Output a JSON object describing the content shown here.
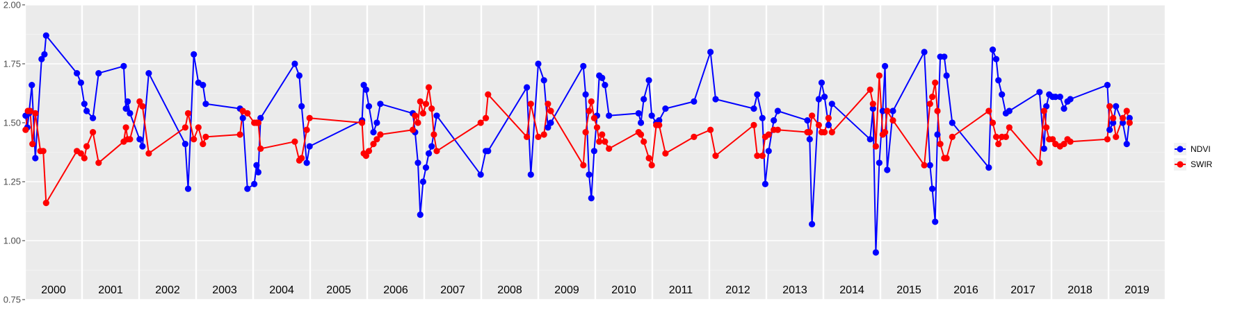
{
  "chart_data": {
    "type": "line",
    "title": "",
    "xlabel": "",
    "ylabel": "",
    "xlim": [
      2000,
      2020
    ],
    "ylim": [
      0.75,
      2.0
    ],
    "y_ticks": [
      "0.75",
      "1.00",
      "1.25",
      "1.50",
      "1.75",
      "2.00"
    ],
    "y_tick_values": [
      0.75,
      1.0,
      1.25,
      1.5,
      1.75,
      2.0
    ],
    "x_panel_labels": [
      "2000",
      "2001",
      "2002",
      "2003",
      "2004",
      "2005",
      "2006",
      "2007",
      "2008",
      "2009",
      "2010",
      "2011",
      "2012",
      "2013",
      "2014",
      "2015",
      "2016",
      "2017",
      "2018",
      "2019"
    ],
    "grid": true,
    "background": "#ebebeb",
    "legend_position": "right",
    "series": [
      {
        "name": "NDVI",
        "color": "#0000ff",
        "points": [
          [
            2000.01,
            1.53
          ],
          [
            2000.04,
            1.48
          ],
          [
            2000.07,
            1.54
          ],
          [
            2000.12,
            1.66
          ],
          [
            2000.18,
            1.35
          ],
          [
            2000.29,
            1.77
          ],
          [
            2000.34,
            1.79
          ],
          [
            2000.37,
            1.87
          ],
          [
            2000.91,
            1.71
          ],
          [
            2000.98,
            1.67
          ],
          [
            2001.04,
            1.58
          ],
          [
            2001.08,
            1.55
          ],
          [
            2001.19,
            1.52
          ],
          [
            2001.29,
            1.71
          ],
          [
            2001.73,
            1.74
          ],
          [
            2001.77,
            1.56
          ],
          [
            2001.8,
            1.59
          ],
          [
            2001.84,
            1.54
          ],
          [
            2002.01,
            1.43
          ],
          [
            2002.06,
            1.4
          ],
          [
            2002.17,
            1.71
          ],
          [
            2002.81,
            1.41
          ],
          [
            2002.86,
            1.22
          ],
          [
            2002.96,
            1.79
          ],
          [
            2003.04,
            1.67
          ],
          [
            2003.12,
            1.66
          ],
          [
            2003.17,
            1.58
          ],
          [
            2003.77,
            1.56
          ],
          [
            2003.82,
            1.52
          ],
          [
            2003.9,
            1.22
          ],
          [
            2004.02,
            1.24
          ],
          [
            2004.06,
            1.32
          ],
          [
            2004.09,
            1.29
          ],
          [
            2004.13,
            1.52
          ],
          [
            2004.73,
            1.75
          ],
          [
            2004.81,
            1.7
          ],
          [
            2004.85,
            1.57
          ],
          [
            2004.94,
            1.33
          ],
          [
            2004.99,
            1.4
          ],
          [
            2005.91,
            1.51
          ],
          [
            2005.94,
            1.66
          ],
          [
            2005.98,
            1.64
          ],
          [
            2006.03,
            1.57
          ],
          [
            2006.11,
            1.46
          ],
          [
            2006.17,
            1.5
          ],
          [
            2006.23,
            1.58
          ],
          [
            2006.8,
            1.54
          ],
          [
            2006.84,
            1.46
          ],
          [
            2006.89,
            1.33
          ],
          [
            2006.93,
            1.11
          ],
          [
            2006.98,
            1.25
          ],
          [
            2007.03,
            1.31
          ],
          [
            2007.08,
            1.37
          ],
          [
            2007.13,
            1.4
          ],
          [
            2007.22,
            1.53
          ],
          [
            2007.99,
            1.28
          ],
          [
            2008.08,
            1.38
          ],
          [
            2008.12,
            1.38
          ],
          [
            2008.8,
            1.65
          ],
          [
            2008.87,
            1.28
          ],
          [
            2009.0,
            1.75
          ],
          [
            2009.1,
            1.68
          ],
          [
            2009.17,
            1.48
          ],
          [
            2009.22,
            1.5
          ],
          [
            2009.79,
            1.74
          ],
          [
            2009.83,
            1.62
          ],
          [
            2009.89,
            1.28
          ],
          [
            2009.93,
            1.18
          ],
          [
            2009.98,
            1.38
          ],
          [
            2010.03,
            1.53
          ],
          [
            2010.07,
            1.7
          ],
          [
            2010.12,
            1.69
          ],
          [
            2010.17,
            1.66
          ],
          [
            2010.24,
            1.53
          ],
          [
            2010.76,
            1.54
          ],
          [
            2010.8,
            1.5
          ],
          [
            2010.85,
            1.6
          ],
          [
            2010.94,
            1.68
          ],
          [
            2010.99,
            1.53
          ],
          [
            2011.07,
            1.5
          ],
          [
            2011.12,
            1.51
          ],
          [
            2011.23,
            1.56
          ],
          [
            2011.73,
            1.59
          ],
          [
            2012.02,
            1.8
          ],
          [
            2012.11,
            1.6
          ],
          [
            2012.78,
            1.56
          ],
          [
            2012.84,
            1.62
          ],
          [
            2012.93,
            1.52
          ],
          [
            2012.98,
            1.24
          ],
          [
            2013.04,
            1.38
          ],
          [
            2013.13,
            1.51
          ],
          [
            2013.2,
            1.55
          ],
          [
            2013.72,
            1.51
          ],
          [
            2013.76,
            1.43
          ],
          [
            2013.8,
            1.07
          ],
          [
            2013.92,
            1.6
          ],
          [
            2013.97,
            1.67
          ],
          [
            2014.02,
            1.61
          ],
          [
            2014.09,
            1.49
          ],
          [
            2014.15,
            1.58
          ],
          [
            2014.82,
            1.43
          ],
          [
            2014.87,
            1.56
          ],
          [
            2014.92,
            0.95
          ],
          [
            2014.98,
            1.33
          ],
          [
            2015.04,
            1.55
          ],
          [
            2015.08,
            1.74
          ],
          [
            2015.12,
            1.3
          ],
          [
            2015.22,
            1.55
          ],
          [
            2015.77,
            1.8
          ],
          [
            2015.87,
            1.32
          ],
          [
            2015.91,
            1.22
          ],
          [
            2015.96,
            1.08
          ],
          [
            2016.0,
            1.45
          ],
          [
            2016.05,
            1.78
          ],
          [
            2016.12,
            1.78
          ],
          [
            2016.16,
            1.7
          ],
          [
            2016.26,
            1.5
          ],
          [
            2016.9,
            1.31
          ],
          [
            2016.97,
            1.81
          ],
          [
            2017.03,
            1.77
          ],
          [
            2017.07,
            1.68
          ],
          [
            2017.13,
            1.62
          ],
          [
            2017.2,
            1.54
          ],
          [
            2017.26,
            1.55
          ],
          [
            2017.79,
            1.63
          ],
          [
            2017.87,
            1.39
          ],
          [
            2017.91,
            1.57
          ],
          [
            2017.96,
            1.62
          ],
          [
            2018.02,
            1.61
          ],
          [
            2018.07,
            1.61
          ],
          [
            2018.15,
            1.61
          ],
          [
            2018.22,
            1.56
          ],
          [
            2018.28,
            1.59
          ],
          [
            2018.33,
            1.6
          ],
          [
            2018.98,
            1.66
          ],
          [
            2019.02,
            1.47
          ],
          [
            2019.08,
            1.5
          ],
          [
            2019.13,
            1.57
          ],
          [
            2019.25,
            1.5
          ],
          [
            2019.32,
            1.41
          ],
          [
            2019.37,
            1.52
          ]
        ]
      },
      {
        "name": "SWIR",
        "color": "#ff0000",
        "points": [
          [
            2000.01,
            1.47
          ],
          [
            2000.05,
            1.55
          ],
          [
            2000.09,
            1.55
          ],
          [
            2000.13,
            1.41
          ],
          [
            2000.18,
            1.54
          ],
          [
            2000.27,
            1.38
          ],
          [
            2000.32,
            1.38
          ],
          [
            2000.37,
            1.16
          ],
          [
            2000.91,
            1.38
          ],
          [
            2000.98,
            1.37
          ],
          [
            2001.04,
            1.35
          ],
          [
            2001.08,
            1.4
          ],
          [
            2001.19,
            1.46
          ],
          [
            2001.29,
            1.33
          ],
          [
            2001.73,
            1.42
          ],
          [
            2001.77,
            1.48
          ],
          [
            2001.8,
            1.43
          ],
          [
            2001.84,
            1.43
          ],
          [
            2002.01,
            1.59
          ],
          [
            2002.06,
            1.57
          ],
          [
            2002.17,
            1.37
          ],
          [
            2002.81,
            1.48
          ],
          [
            2002.86,
            1.54
          ],
          [
            2002.96,
            1.43
          ],
          [
            2003.04,
            1.48
          ],
          [
            2003.12,
            1.41
          ],
          [
            2003.17,
            1.44
          ],
          [
            2003.77,
            1.45
          ],
          [
            2003.82,
            1.55
          ],
          [
            2003.9,
            1.54
          ],
          [
            2004.02,
            1.5
          ],
          [
            2004.06,
            1.5
          ],
          [
            2004.09,
            1.5
          ],
          [
            2004.13,
            1.39
          ],
          [
            2004.73,
            1.42
          ],
          [
            2004.81,
            1.34
          ],
          [
            2004.85,
            1.35
          ],
          [
            2004.94,
            1.47
          ],
          [
            2004.99,
            1.52
          ],
          [
            2005.91,
            1.5
          ],
          [
            2005.94,
            1.37
          ],
          [
            2005.98,
            1.36
          ],
          [
            2006.03,
            1.38
          ],
          [
            2006.11,
            1.41
          ],
          [
            2006.17,
            1.43
          ],
          [
            2006.23,
            1.45
          ],
          [
            2006.8,
            1.47
          ],
          [
            2006.84,
            1.53
          ],
          [
            2006.89,
            1.5
          ],
          [
            2006.93,
            1.59
          ],
          [
            2006.98,
            1.54
          ],
          [
            2007.03,
            1.58
          ],
          [
            2007.08,
            1.65
          ],
          [
            2007.13,
            1.56
          ],
          [
            2007.17,
            1.45
          ],
          [
            2007.22,
            1.38
          ],
          [
            2007.99,
            1.5
          ],
          [
            2008.08,
            1.52
          ],
          [
            2008.12,
            1.62
          ],
          [
            2008.8,
            1.44
          ],
          [
            2008.87,
            1.58
          ],
          [
            2009.0,
            1.44
          ],
          [
            2009.1,
            1.45
          ],
          [
            2009.17,
            1.58
          ],
          [
            2009.22,
            1.55
          ],
          [
            2009.79,
            1.32
          ],
          [
            2009.83,
            1.46
          ],
          [
            2009.89,
            1.55
          ],
          [
            2009.93,
            1.59
          ],
          [
            2009.98,
            1.52
          ],
          [
            2010.03,
            1.48
          ],
          [
            2010.07,
            1.42
          ],
          [
            2010.12,
            1.45
          ],
          [
            2010.17,
            1.42
          ],
          [
            2010.24,
            1.39
          ],
          [
            2010.76,
            1.46
          ],
          [
            2010.8,
            1.45
          ],
          [
            2010.85,
            1.42
          ],
          [
            2010.94,
            1.35
          ],
          [
            2010.99,
            1.32
          ],
          [
            2011.07,
            1.49
          ],
          [
            2011.12,
            1.49
          ],
          [
            2011.23,
            1.37
          ],
          [
            2011.73,
            1.44
          ],
          [
            2012.02,
            1.47
          ],
          [
            2012.11,
            1.36
          ],
          [
            2012.78,
            1.49
          ],
          [
            2012.84,
            1.36
          ],
          [
            2012.93,
            1.36
          ],
          [
            2012.98,
            1.44
          ],
          [
            2013.04,
            1.45
          ],
          [
            2013.13,
            1.47
          ],
          [
            2013.2,
            1.47
          ],
          [
            2013.72,
            1.46
          ],
          [
            2013.76,
            1.46
          ],
          [
            2013.8,
            1.53
          ],
          [
            2013.92,
            1.49
          ],
          [
            2013.97,
            1.46
          ],
          [
            2014.02,
            1.46
          ],
          [
            2014.09,
            1.52
          ],
          [
            2014.15,
            1.46
          ],
          [
            2014.82,
            1.64
          ],
          [
            2014.87,
            1.58
          ],
          [
            2014.92,
            1.4
          ],
          [
            2014.98,
            1.7
          ],
          [
            2015.04,
            1.45
          ],
          [
            2015.08,
            1.46
          ],
          [
            2015.12,
            1.55
          ],
          [
            2015.22,
            1.51
          ],
          [
            2015.77,
            1.32
          ],
          [
            2015.87,
            1.58
          ],
          [
            2015.91,
            1.61
          ],
          [
            2015.96,
            1.67
          ],
          [
            2016.0,
            1.55
          ],
          [
            2016.05,
            1.41
          ],
          [
            2016.12,
            1.35
          ],
          [
            2016.16,
            1.35
          ],
          [
            2016.26,
            1.44
          ],
          [
            2016.9,
            1.55
          ],
          [
            2016.97,
            1.5
          ],
          [
            2017.03,
            1.44
          ],
          [
            2017.07,
            1.41
          ],
          [
            2017.13,
            1.44
          ],
          [
            2017.2,
            1.44
          ],
          [
            2017.26,
            1.48
          ],
          [
            2017.79,
            1.33
          ],
          [
            2017.87,
            1.55
          ],
          [
            2017.91,
            1.48
          ],
          [
            2017.96,
            1.43
          ],
          [
            2018.02,
            1.43
          ],
          [
            2018.07,
            1.41
          ],
          [
            2018.15,
            1.4
          ],
          [
            2018.22,
            1.41
          ],
          [
            2018.28,
            1.43
          ],
          [
            2018.33,
            1.42
          ],
          [
            2018.98,
            1.43
          ],
          [
            2019.02,
            1.57
          ],
          [
            2019.08,
            1.52
          ],
          [
            2019.13,
            1.44
          ],
          [
            2019.25,
            1.52
          ],
          [
            2019.32,
            1.55
          ],
          [
            2019.37,
            1.5
          ]
        ]
      }
    ]
  }
}
